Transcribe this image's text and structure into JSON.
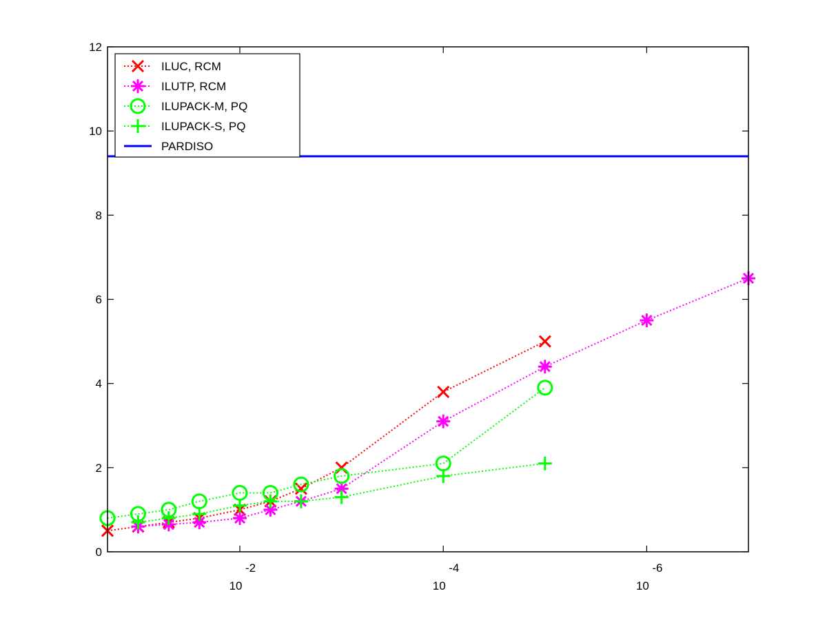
{
  "chart_data": {
    "type": "line",
    "x_scale": "log",
    "x_reversed": true,
    "xlim": [
      0.2,
      1e-07
    ],
    "ylim": [
      0,
      12
    ],
    "y_ticks": [
      0,
      2,
      4,
      6,
      8,
      10,
      12
    ],
    "x_ticks": [
      {
        "value": 0.01,
        "base": "10",
        "exp": "-2"
      },
      {
        "value": 0.0001,
        "base": "10",
        "exp": "-4"
      },
      {
        "value": 1e-06,
        "base": "10",
        "exp": "-6"
      }
    ],
    "legend_position": "top-left",
    "series": [
      {
        "name": "ILUC, RCM",
        "color": "#ff0000",
        "marker": "x",
        "line": "dotted",
        "x": [
          0.2,
          0.1,
          0.05,
          0.025,
          0.01,
          0.005,
          0.0025,
          0.001,
          0.0001,
          1e-05
        ],
        "y": [
          0.5,
          0.6,
          0.7,
          0.8,
          1.0,
          1.2,
          1.5,
          2.0,
          3.8,
          5.0
        ]
      },
      {
        "name": "ILUTP, RCM",
        "color": "#ff00ff",
        "marker": "asterisk",
        "line": "dotted",
        "x": [
          0.1,
          0.05,
          0.025,
          0.01,
          0.005,
          0.0025,
          0.001,
          0.0001,
          1e-05,
          1e-06,
          1e-07
        ],
        "y": [
          0.6,
          0.65,
          0.7,
          0.8,
          1.0,
          1.2,
          1.5,
          3.1,
          4.4,
          5.5,
          6.5
        ]
      },
      {
        "name": "ILUPACK-M, PQ",
        "color": "#00ff00",
        "marker": "o",
        "line": "dotted",
        "x": [
          0.2,
          0.1,
          0.05,
          0.025,
          0.01,
          0.005,
          0.0025,
          0.001,
          0.0001,
          1e-05
        ],
        "y": [
          0.8,
          0.9,
          1.0,
          1.2,
          1.4,
          1.4,
          1.6,
          1.8,
          2.1,
          3.9
        ]
      },
      {
        "name": "ILUPACK-S, PQ",
        "color": "#00ff00",
        "marker": "+",
        "line": "dotted",
        "x": [
          0.1,
          0.05,
          0.025,
          0.01,
          0.005,
          0.0025,
          0.001,
          0.0001,
          1e-05
        ],
        "y": [
          0.7,
          0.8,
          0.9,
          1.1,
          1.2,
          1.2,
          1.3,
          1.8,
          2.1
        ]
      },
      {
        "name": "PARDISO",
        "color": "#0000ff",
        "marker": "none",
        "line": "solid",
        "x": [
          0.2,
          1e-07
        ],
        "y": [
          9.4,
          9.4
        ]
      }
    ]
  }
}
